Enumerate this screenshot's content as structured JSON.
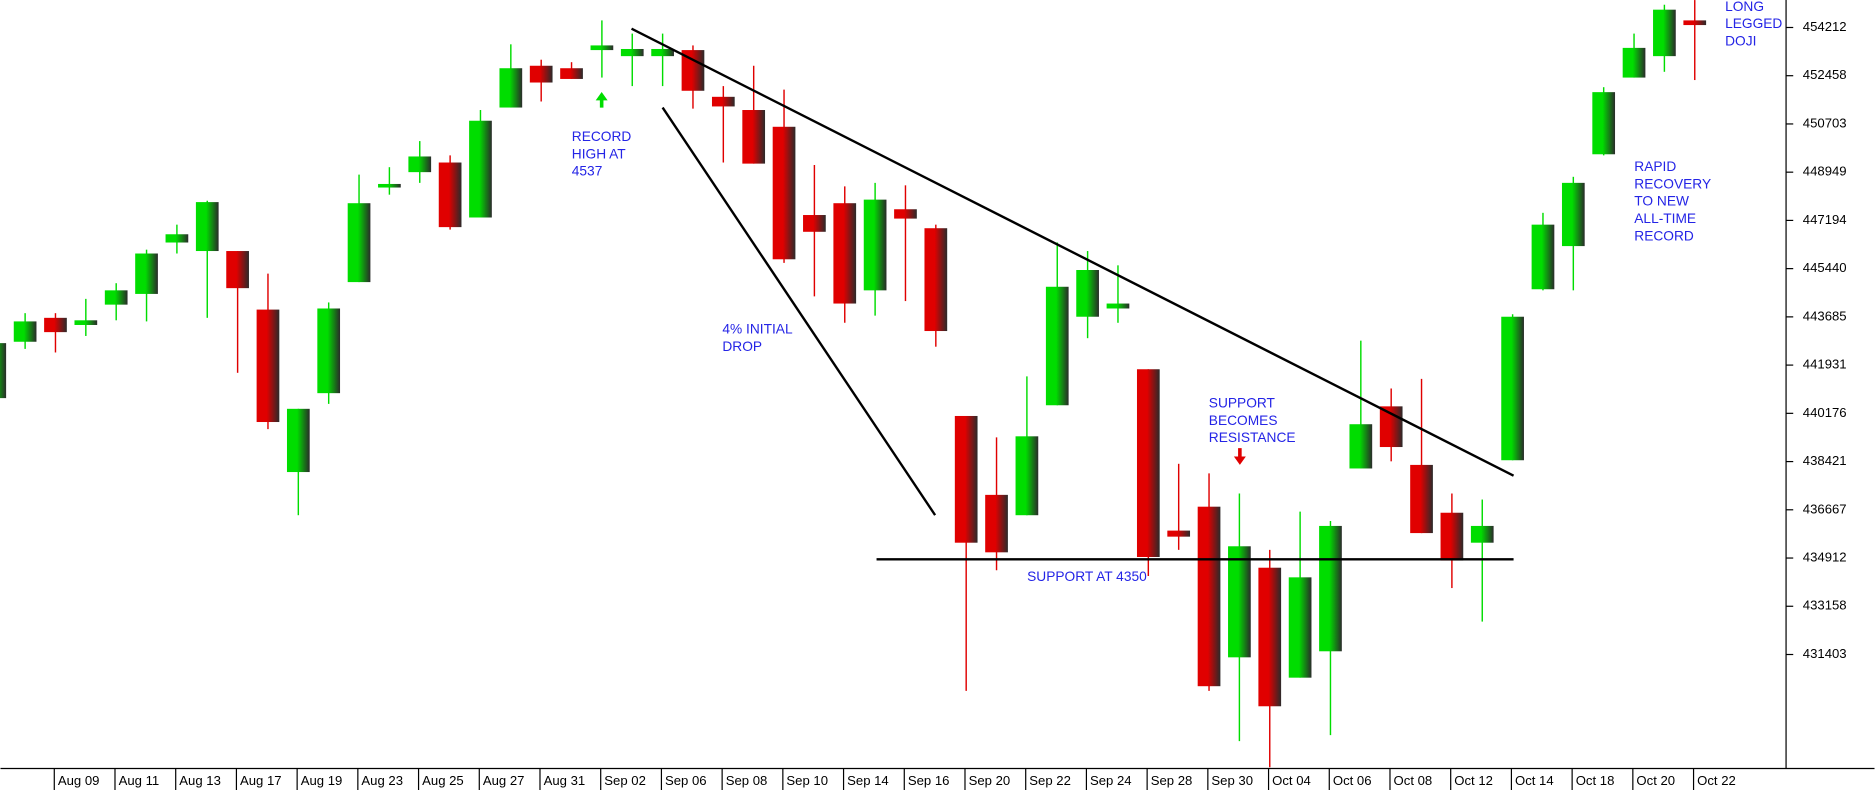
{
  "chart_data": {
    "type": "candlestick",
    "categories": [
      null,
      null,
      "Aug 09",
      null,
      "Aug 11",
      null,
      "Aug 13",
      null,
      "Aug 17",
      null,
      "Aug 19",
      null,
      "Aug 23",
      null,
      "Aug 25",
      null,
      "Aug 27",
      null,
      "Aug 31",
      null,
      "Sep 02",
      null,
      "Sep 06",
      null,
      "Sep 08",
      null,
      "Sep 10",
      null,
      "Sep 14",
      null,
      "Sep 16",
      null,
      "Sep 20",
      null,
      "Sep 22",
      null,
      "Sep 24",
      null,
      "Sep 28",
      null,
      "Sep 30",
      null,
      "Oct 04",
      null,
      "Oct 06",
      null,
      "Oct 08",
      null,
      "Oct 12",
      null,
      "Oct 14",
      null,
      "Oct 18",
      null,
      "Oct 20",
      null,
      "Oct 22"
    ],
    "open": [
      440730,
      442780,
      443650,
      443390,
      444130,
      444520,
      446390,
      446080,
      446080,
      443950,
      438040,
      440910,
      444950,
      448390,
      448950,
      449300,
      447300,
      451300,
      452820,
      452730,
      453390,
      453170,
      453170,
      453390,
      451690,
      451210,
      450600,
      447390,
      447820,
      444650,
      447600,
      446910,
      440080,
      437210,
      436470,
      440470,
      443690,
      443990,
      441780,
      435910,
      436780,
      431300,
      434560,
      430560,
      431520,
      438170,
      440430,
      438300,
      436560,
      435470,
      438470,
      444690,
      446260,
      449600,
      452390,
      453170,
      454470
    ],
    "high": [
      442820,
      443820,
      443820,
      444340,
      444910,
      446130,
      447040,
      447910,
      446080,
      445260,
      440340,
      444210,
      448860,
      449130,
      450080,
      449560,
      451210,
      453600,
      453040,
      452950,
      454470,
      453990,
      453990,
      453560,
      452080,
      452820,
      451950,
      449210,
      448430,
      448560,
      448470,
      447040,
      440080,
      439300,
      441520,
      446390,
      446080,
      445560,
      441780,
      438340,
      437990,
      437260,
      435210,
      436600,
      436260,
      442820,
      441080,
      441430,
      437260,
      437040,
      443780,
      447470,
      448780,
      452040,
      453990,
      455040,
      455210
    ],
    "low": [
      440650,
      442520,
      442390,
      442990,
      443560,
      443520,
      445990,
      443650,
      441650,
      439600,
      436470,
      440520,
      444950,
      448130,
      448560,
      446860,
      447300,
      451300,
      451520,
      452340,
      452390,
      452080,
      452080,
      451260,
      449300,
      449260,
      445650,
      444430,
      443470,
      443730,
      444260,
      442600,
      430080,
      434470,
      436470,
      440470,
      442910,
      443470,
      434260,
      435210,
      430080,
      428250,
      427300,
      430560,
      428470,
      438170,
      438430,
      435820,
      433820,
      432600,
      438470,
      444650,
      444650,
      449560,
      452390,
      452600,
      452300
    ],
    "close": [
      442730,
      443520,
      443130,
      443560,
      444650,
      445990,
      446690,
      447860,
      444730,
      439860,
      440340,
      443990,
      447820,
      448520,
      449520,
      446950,
      450820,
      452730,
      452210,
      452340,
      453560,
      453430,
      453430,
      451910,
      451340,
      449260,
      445780,
      446780,
      444170,
      447950,
      447260,
      443170,
      435470,
      435120,
      439340,
      444780,
      445390,
      444170,
      434950,
      435690,
      430250,
      435340,
      429520,
      434210,
      436080,
      439780,
      438950,
      435820,
      434820,
      436080,
      443690,
      447040,
      448560,
      451860,
      453470,
      454860,
      454300
    ],
    "up_color": "#00dd00",
    "down_color": "#e00000",
    "ylim": [
      427300,
      455212
    ],
    "yticks": [
      454212,
      452458,
      450703,
      448949,
      447194,
      445440,
      443685,
      441931,
      440176,
      438421,
      436667,
      434912,
      433158,
      431403
    ],
    "annotations": [
      [
        "RECORD",
        "HIGH AT",
        "4537"
      ],
      [
        "4% INITIAL",
        "DROP"
      ],
      [
        "SUPPORT AT 4350"
      ],
      [
        "SUPPORT",
        "BECOMES",
        "RESISTANCE"
      ],
      [
        "RAPID",
        "RECOVERY",
        "TO NEW",
        "ALL-TIME",
        "RECORD"
      ],
      [
        "LONG",
        "LEGGED",
        "DOJI"
      ]
    ]
  }
}
